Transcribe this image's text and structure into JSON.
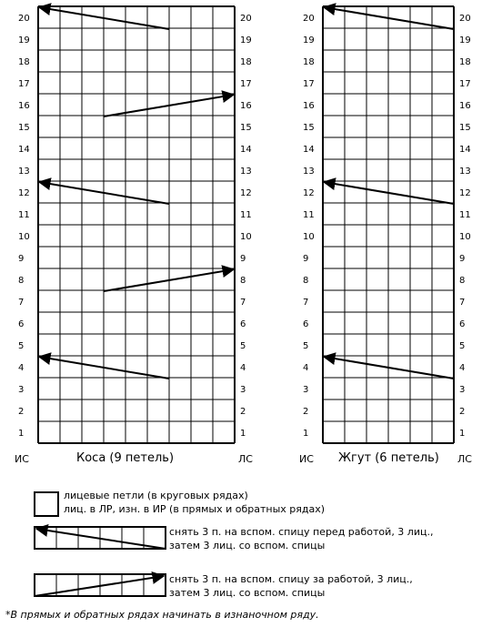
{
  "charts": [
    {
      "key": "kosa",
      "caption": "Коса (9 петель)",
      "columns": 9,
      "rows": 20,
      "cross_rows": [
        {
          "row": 20,
          "direction": "left"
        },
        {
          "row": 16,
          "direction": "right"
        },
        {
          "row": 12,
          "direction": "left"
        },
        {
          "row": 8,
          "direction": "right"
        },
        {
          "row": 4,
          "direction": "left"
        }
      ],
      "side_left": "ИС",
      "side_right": "ЛС"
    },
    {
      "key": "zhgut",
      "caption": "Жгут (6 петель)",
      "columns": 6,
      "rows": 20,
      "cross_rows": [
        {
          "row": 20,
          "direction": "left"
        },
        {
          "row": 12,
          "direction": "left"
        },
        {
          "row": 4,
          "direction": "left"
        }
      ],
      "side_left": "ИС",
      "side_right": "ЛС"
    }
  ],
  "legend": [
    {
      "symbol": "empty-cell",
      "lines": [
        "лицевые петли (в круговых рядах)",
        "лиц. в ЛР, изн. в ИР (в прямых и обратных рядах)"
      ]
    },
    {
      "symbol": "cross-left",
      "lines": [
        "снять 3 п. на вспом. спицу перед работой, 3 лиц.,",
        "затем 3 лиц. со вспом. спицы"
      ]
    },
    {
      "symbol": "cross-right",
      "lines": [
        "снять 3 п. на вспом. спицу за работой, 3 лиц.,",
        "затем 3 лиц. со вспом. спицы"
      ]
    }
  ],
  "footnote": "*В прямых и обратных рядах начинать в изнаночном ряду.",
  "colors": {
    "line": "#000000",
    "background": "#ffffff"
  }
}
